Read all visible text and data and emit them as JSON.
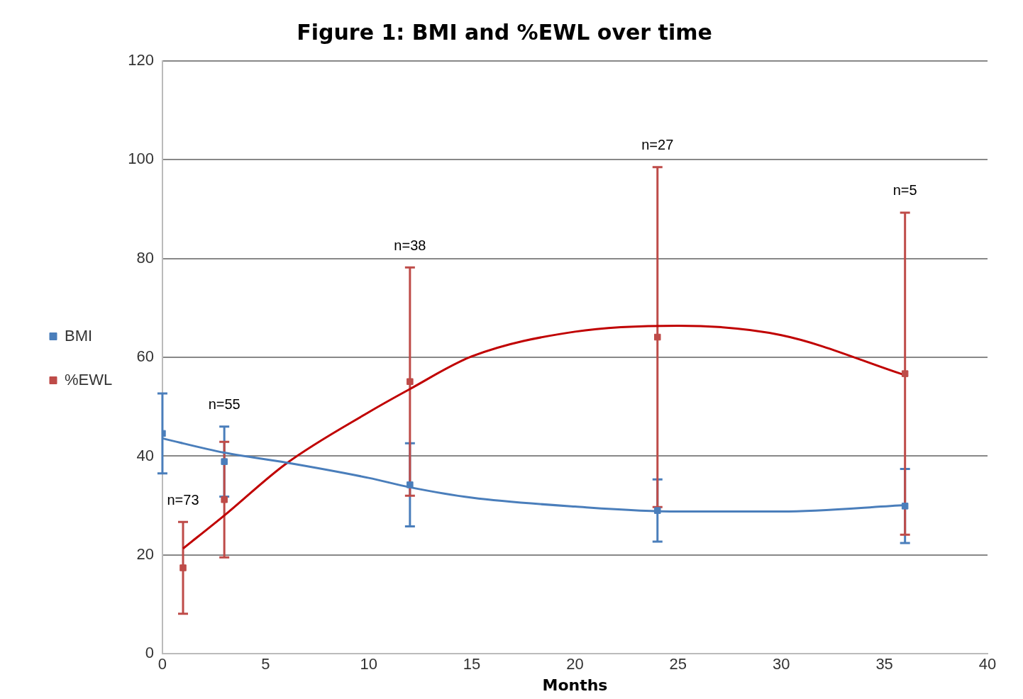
{
  "chart_data": {
    "type": "scatter",
    "title": "Figure 1: BMI and %EWL over time",
    "xlabel": "Months",
    "xlim": [
      0,
      40
    ],
    "xticks": [
      0,
      5,
      10,
      15,
      20,
      25,
      30,
      35,
      40
    ],
    "ylim": [
      0,
      120
    ],
    "yticks": [
      0,
      20,
      40,
      60,
      80,
      100,
      120
    ],
    "grid": "y",
    "legend": "left",
    "marker": "square",
    "series": [
      {
        "name": "BMI",
        "color": "#4a7ebb",
        "x": [
          0,
          3,
          12,
          24,
          36
        ],
        "values": [
          44.6,
          38.9,
          34.2,
          29,
          29.9
        ],
        "errors": [
          8.1,
          7.1,
          8.4,
          6.3,
          7.5
        ]
      },
      {
        "name": "%EWL",
        "color": "#be4b48",
        "x": [
          1,
          3,
          12,
          24,
          36
        ],
        "values": [
          17.4,
          31.2,
          55.1,
          64.1,
          56.7
        ],
        "errors": [
          9.3,
          11.7,
          23.1,
          34.4,
          32.6
        ]
      },
      {
        "type": "line",
        "color": "#4a7ebb",
        "marker": "none",
        "x": [
          0,
          3,
          6,
          10,
          12,
          15,
          20,
          25,
          30,
          36
        ],
        "values": [
          43.6,
          40.7,
          38.7,
          35.6,
          33.7,
          31.6,
          29.8,
          28.8,
          28.8,
          30.1
        ]
      },
      {
        "type": "line",
        "color": "#c00000",
        "marker": "none",
        "x": [
          1,
          3,
          6,
          10,
          12,
          15,
          20,
          25,
          30,
          36
        ],
        "values": [
          21.3,
          28,
          38.5,
          48.9,
          53.6,
          60.2,
          65.2,
          66.4,
          64.5,
          56.4
        ]
      }
    ],
    "annotations": [
      {
        "text": "n=73",
        "x": 1,
        "y": 26.7
      },
      {
        "text": "n=55",
        "x": 3,
        "y": 46
      },
      {
        "text": "n=38",
        "x": 12,
        "y": 78.2
      },
      {
        "text": "n=27",
        "x": 24,
        "y": 98.5
      },
      {
        "text": "n=5",
        "x": 36,
        "y": 89.3
      }
    ]
  }
}
